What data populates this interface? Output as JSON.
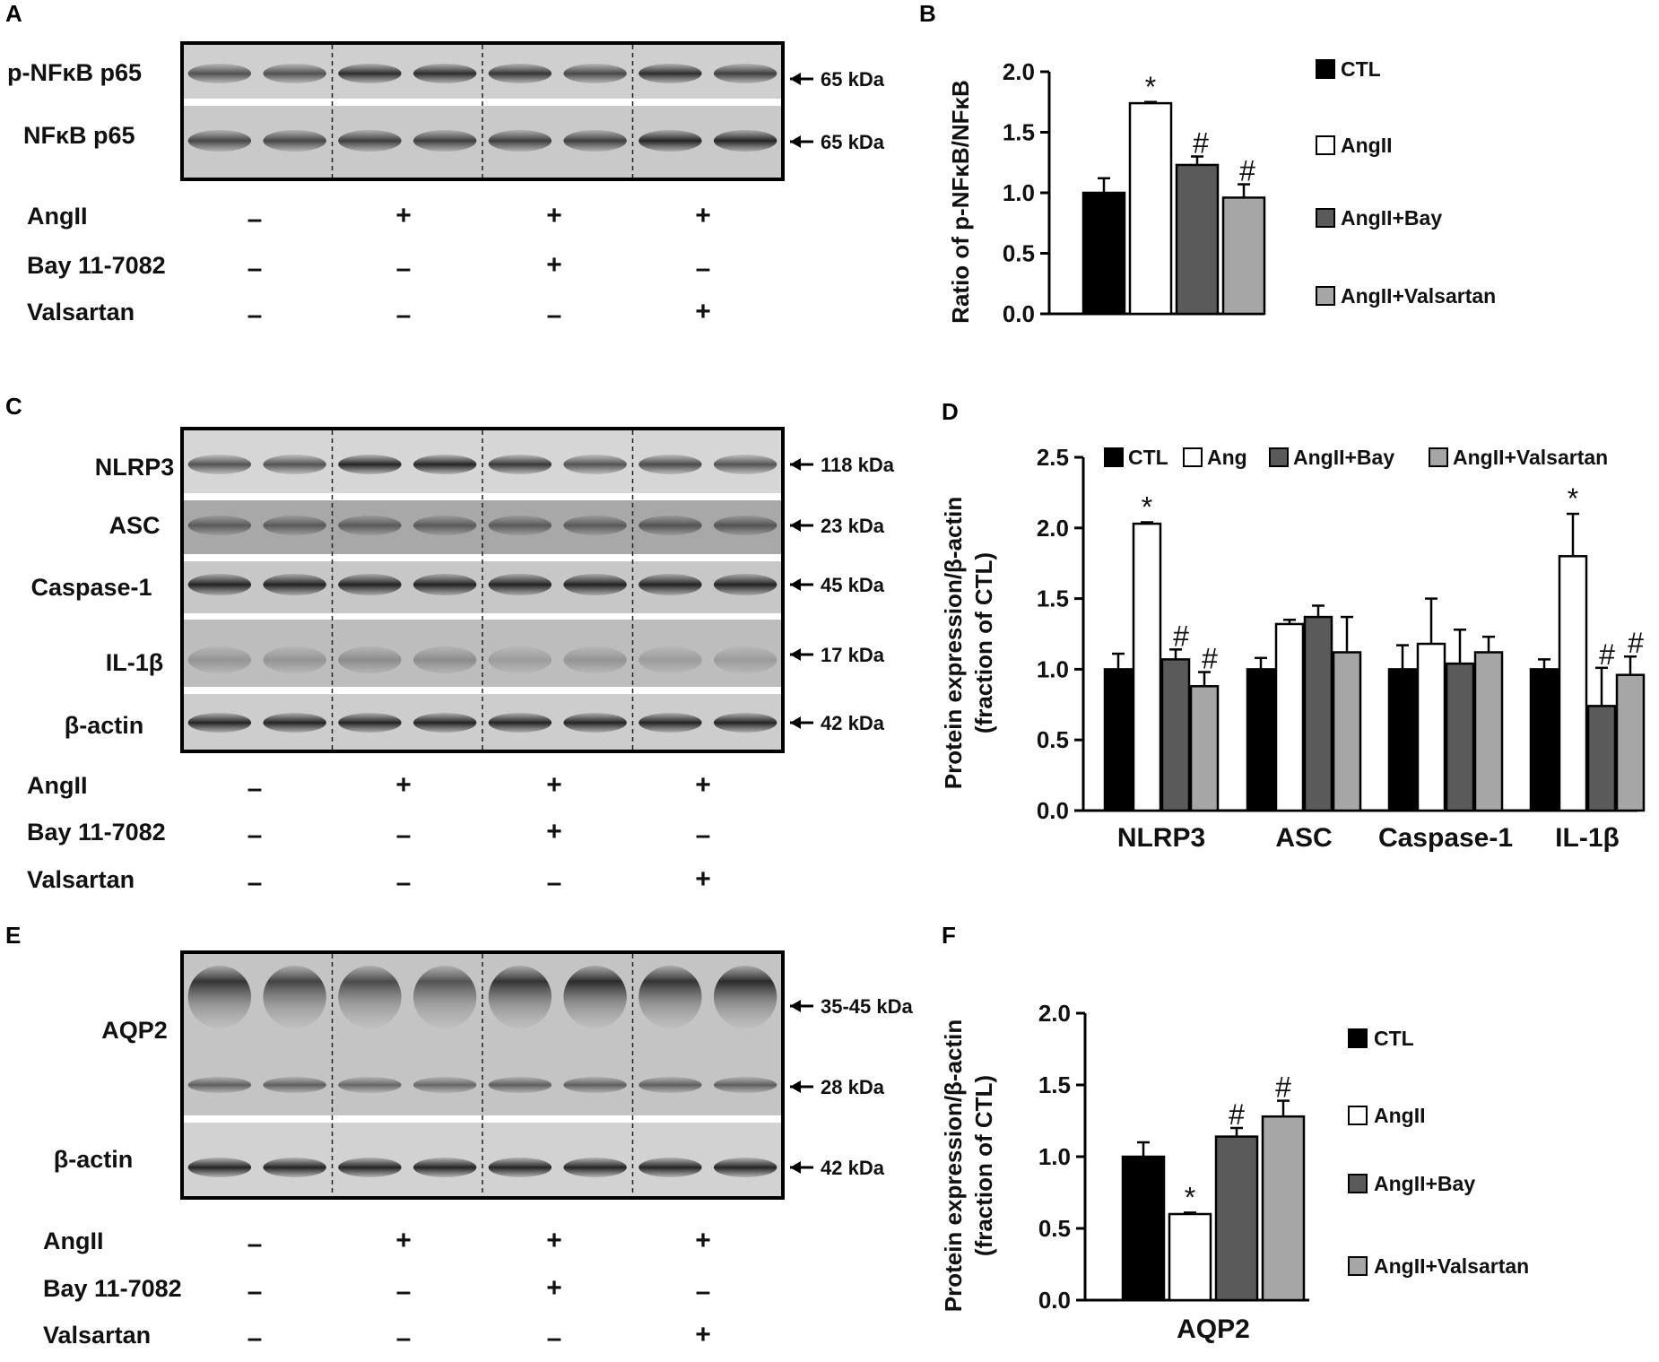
{
  "panels": {
    "A": {
      "letter": "A",
      "blots": [
        {
          "label": "p-NFκB p65",
          "size": "65 kDa"
        },
        {
          "label": "NFκB p65",
          "size": "65 kDa"
        }
      ],
      "treatments": [
        {
          "name": "AngII",
          "marks": [
            "–",
            "+",
            "+",
            "+"
          ]
        },
        {
          "name": "Bay 11-7082",
          "marks": [
            "–",
            "–",
            "+",
            "–"
          ]
        },
        {
          "name": "Valsartan",
          "marks": [
            "–",
            "–",
            "–",
            "+"
          ]
        }
      ]
    },
    "C": {
      "letter": "C",
      "blots": [
        {
          "label": "NLRP3",
          "size": "118 kDa"
        },
        {
          "label": "ASC",
          "size": "23 kDa"
        },
        {
          "label": "Caspase-1",
          "size": "45 kDa"
        },
        {
          "label": "IL-1β",
          "size": "17 kDa"
        },
        {
          "label": "β-actin",
          "size": "42 kDa"
        }
      ],
      "treatments": [
        {
          "name": "AngII",
          "marks": [
            "–",
            "+",
            "+",
            "+"
          ]
        },
        {
          "name": "Bay 11-7082",
          "marks": [
            "–",
            "–",
            "+",
            "–"
          ]
        },
        {
          "name": "Valsartan",
          "marks": [
            "–",
            "–",
            "–",
            "+"
          ]
        }
      ]
    },
    "E": {
      "letter": "E",
      "blots": [
        {
          "label": "AQP2",
          "sizes": [
            "35-45 kDa",
            "28 kDa"
          ]
        },
        {
          "label": "β-actin",
          "size": "42 kDa"
        }
      ],
      "treatments": [
        {
          "name": "AngII",
          "marks": [
            "–",
            "+",
            "+",
            "+"
          ]
        },
        {
          "name": "Bay 11-7082",
          "marks": [
            "–",
            "–",
            "+",
            "–"
          ]
        },
        {
          "name": "Valsartan",
          "marks": [
            "–",
            "–",
            "–",
            "+"
          ]
        }
      ]
    }
  },
  "chart_data": [
    {
      "panel": "B",
      "type": "bar",
      "ylabel": "Ratio of p-NFκB/NFκB",
      "ylim": [
        0,
        2.0
      ],
      "yticks": [
        "0.0",
        "0.5",
        "1.0",
        "1.5",
        "2.0"
      ],
      "legend_position": "right",
      "series": [
        {
          "name": "CTL",
          "color": "#000000",
          "values": [
            1.0
          ],
          "errors": [
            0.12
          ],
          "mark": ""
        },
        {
          "name": "AngII",
          "color": "#ffffff",
          "values": [
            1.74
          ],
          "errors": [
            0.01
          ],
          "mark": "*"
        },
        {
          "name": "AngII+Bay",
          "color": "#5a5a5a",
          "values": [
            1.23
          ],
          "errors": [
            0.07
          ],
          "mark": "#"
        },
        {
          "name": "AngII+Valsartan",
          "color": "#a6a6a6",
          "values": [
            0.96
          ],
          "errors": [
            0.11
          ],
          "mark": "#"
        }
      ]
    },
    {
      "panel": "D",
      "type": "bar",
      "ylabel": "Protein expression/β-actin",
      "ylabel2": "(fraction of CTL)",
      "categories": [
        "NLRP3",
        "ASC",
        "Caspase-1",
        "IL-1β"
      ],
      "ylim": [
        0,
        2.5
      ],
      "yticks": [
        "0.0",
        "0.5",
        "1.0",
        "1.5",
        "2.0",
        "2.5"
      ],
      "legend_position": "top",
      "series": [
        {
          "name": "CTL",
          "color": "#000000",
          "values": [
            1.0,
            1.0,
            1.0,
            1.0
          ],
          "errors": [
            0.11,
            0.08,
            0.17,
            0.07
          ],
          "marks": [
            "",
            "",
            "",
            ""
          ]
        },
        {
          "name": "Ang",
          "color": "#ffffff",
          "values": [
            2.03,
            1.32,
            1.18,
            1.8
          ],
          "errors": [
            0.01,
            0.03,
            0.32,
            0.3
          ],
          "marks": [
            "*",
            "",
            "",
            "*"
          ]
        },
        {
          "name": "AngII+Bay",
          "color": "#5a5a5a",
          "values": [
            1.07,
            1.37,
            1.04,
            0.74
          ],
          "errors": [
            0.07,
            0.08,
            0.24,
            0.27
          ],
          "marks": [
            "#",
            "",
            "",
            "#"
          ]
        },
        {
          "name": "AngII+Valsartan",
          "color": "#a6a6a6",
          "values": [
            0.88,
            1.12,
            1.12,
            0.96
          ],
          "errors": [
            0.1,
            0.25,
            0.11,
            0.13
          ],
          "marks": [
            "#",
            "",
            "",
            "#"
          ]
        }
      ]
    },
    {
      "panel": "F",
      "type": "bar",
      "ylabel": "Protein expression/β-actin",
      "ylabel2": "(fraction of CTL)",
      "categories": [
        "AQP2"
      ],
      "ylim": [
        0,
        2.0
      ],
      "yticks": [
        "0.0",
        "0.5",
        "1.0",
        "1.5",
        "2.0"
      ],
      "legend_position": "right",
      "series": [
        {
          "name": "CTL",
          "color": "#000000",
          "values": [
            1.0
          ],
          "errors": [
            0.1
          ],
          "mark": ""
        },
        {
          "name": "AngII",
          "color": "#ffffff",
          "values": [
            0.6
          ],
          "errors": [
            0.01
          ],
          "mark": "*"
        },
        {
          "name": "AngII+Bay",
          "color": "#5a5a5a",
          "values": [
            1.14
          ],
          "errors": [
            0.06
          ],
          "mark": "#"
        },
        {
          "name": "AngII+Valsartan",
          "color": "#a6a6a6",
          "values": [
            1.28
          ],
          "errors": [
            0.11
          ],
          "mark": "#"
        }
      ]
    }
  ],
  "panel_letters": {
    "B": "B",
    "D": "D",
    "F": "F"
  }
}
